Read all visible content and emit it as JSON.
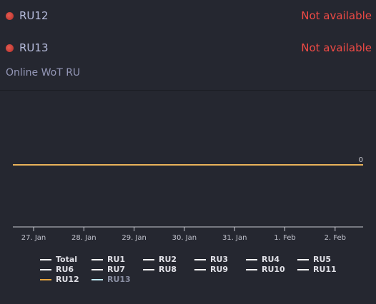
{
  "servers": [
    {
      "name": "RU12",
      "status": "Not available",
      "indicator_color": "#d9443d"
    },
    {
      "name": "RU13",
      "status": "Not available",
      "indicator_color": "#d9443d"
    }
  ],
  "section_title": "Online WoT RU",
  "colors": {
    "background": "#252730",
    "status_unavailable": "#f04a45",
    "series_line": "#e8b25a",
    "axis": "#c8c8d0",
    "legend_text": "#e0e0e6",
    "legend_hidden_text": "#8a8fa3"
  },
  "chart_data": {
    "type": "line",
    "title": "",
    "xlabel": "",
    "ylabel": "",
    "x_tick_labels": [
      "27. Jan",
      "28. Jan",
      "29. Jan",
      "30. Jan",
      "31. Jan",
      "1. Feb",
      "2. Feb"
    ],
    "series": [
      {
        "name": "RU12",
        "color": "#e8b25a",
        "values": [
          0,
          0,
          0,
          0,
          0,
          0,
          0,
          0
        ],
        "end_label": "0"
      }
    ],
    "grid": false,
    "legend_position": "bottom"
  },
  "legend": [
    {
      "label": "Total",
      "color": "#ffffff",
      "visible": true
    },
    {
      "label": "RU1",
      "color": "#ffffff",
      "visible": true
    },
    {
      "label": "RU2",
      "color": "#ffffff",
      "visible": true
    },
    {
      "label": "RU3",
      "color": "#ffffff",
      "visible": true
    },
    {
      "label": "RU4",
      "color": "#ffffff",
      "visible": true
    },
    {
      "label": "RU5",
      "color": "#ffffff",
      "visible": true
    },
    {
      "label": "RU6",
      "color": "#ffffff",
      "visible": true
    },
    {
      "label": "RU7",
      "color": "#ffffff",
      "visible": true
    },
    {
      "label": "RU8",
      "color": "#ffffff",
      "visible": true
    },
    {
      "label": "RU9",
      "color": "#ffffff",
      "visible": true
    },
    {
      "label": "RU10",
      "color": "#ffffff",
      "visible": true
    },
    {
      "label": "RU11",
      "color": "#ffffff",
      "visible": true
    },
    {
      "label": "RU12",
      "color": "#e8a640",
      "visible": true
    },
    {
      "label": "RU13",
      "color": "#bfe9f2",
      "visible": false
    }
  ]
}
